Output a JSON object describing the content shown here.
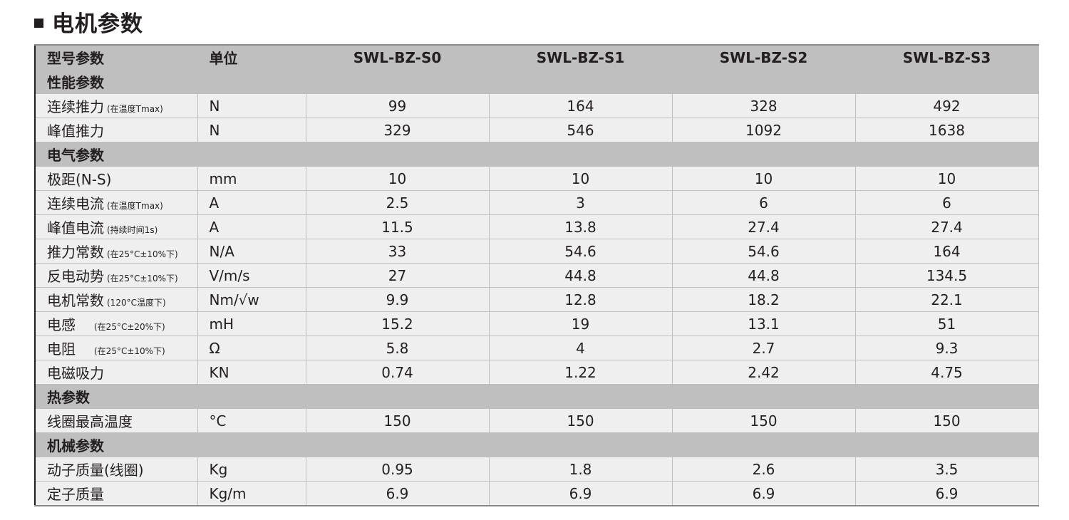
{
  "title": "电机参数",
  "header": {
    "name": "型号参数",
    "unit": "单位",
    "models": [
      "SWL-BZ-S0",
      "SWL-BZ-S1",
      "SWL-BZ-S2",
      "SWL-BZ-S3"
    ]
  },
  "sections": [
    {
      "label": "性能参数",
      "rows": [
        {
          "name": "连续推力",
          "note": "(在温度Tmax)",
          "unit": "N",
          "values": [
            "99",
            "164",
            "328",
            "492"
          ]
        },
        {
          "name": "峰值推力",
          "note": "",
          "unit": "N",
          "values": [
            "329",
            "546",
            "1092",
            "1638"
          ]
        }
      ]
    },
    {
      "label": "电气参数",
      "rows": [
        {
          "name": "极距(N-S)",
          "note": "",
          "unit": "mm",
          "values": [
            "10",
            "10",
            "10",
            "10"
          ]
        },
        {
          "name": "连续电流",
          "note": "(在温度Tmax)",
          "unit": "A",
          "values": [
            "2.5",
            "3",
            "6",
            "6"
          ]
        },
        {
          "name": "峰值电流",
          "note": "(持续时间1s)",
          "unit": "A",
          "values": [
            "11.5",
            "13.8",
            "27.4",
            "27.4"
          ]
        },
        {
          "name": "推力常数",
          "note": "(在25°C±10%下)",
          "unit": "N/A",
          "values": [
            "33",
            "54.6",
            "54.6",
            "164"
          ]
        },
        {
          "name": "反电动势",
          "note": "(在25°C±10%下)",
          "unit": "V/m/s",
          "values": [
            "27",
            "44.8",
            "44.8",
            "134.5"
          ]
        },
        {
          "name": "电机常数",
          "note": "(120°C温度下)",
          "unit": "Nm/√w",
          "values": [
            "9.9",
            "12.8",
            "18.2",
            "22.1"
          ]
        },
        {
          "name": "电感",
          "note": "(在25°C±20%下)",
          "unit": "mH",
          "values": [
            "15.2",
            "19",
            "13.1",
            "51"
          ]
        },
        {
          "name": "电阻",
          "note": "(在25°C±10%下)",
          "unit": "Ω",
          "values": [
            "5.8",
            "4",
            "2.7",
            "9.3"
          ]
        },
        {
          "name": "电磁吸力",
          "note": "",
          "unit": "KN",
          "values": [
            "0.74",
            "1.22",
            "2.42",
            "4.75"
          ]
        }
      ]
    },
    {
      "label": "热参数",
      "rows": [
        {
          "name": "线圈最高温度",
          "note": "",
          "unit": "°C",
          "values": [
            "150",
            "150",
            "150",
            "150"
          ]
        }
      ]
    },
    {
      "label": "机械参数",
      "rows": [
        {
          "name": "动子质量(线圈)",
          "note": "",
          "unit": "Kg",
          "values": [
            "0.95",
            "1.8",
            "2.6",
            "3.5"
          ]
        },
        {
          "name": "定子质量",
          "note": "",
          "unit": "Kg/m",
          "values": [
            "6.9",
            "6.9",
            "6.9",
            "6.9"
          ]
        }
      ]
    }
  ]
}
